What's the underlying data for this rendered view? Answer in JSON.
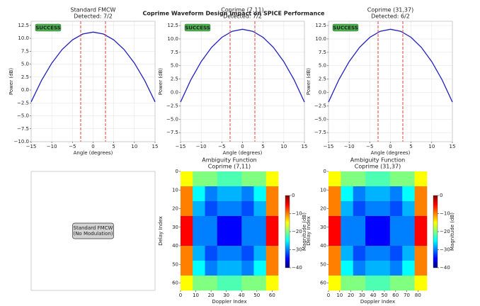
{
  "title": "Coprime Waveform Design Impact on SPICE Performance",
  "chart_data": [
    {
      "type": "line",
      "title": "Standard FMCW",
      "subtitle": "Detected: 7/2",
      "xlabel": "Angle (degrees)",
      "ylabel": "Power (dB)",
      "annotation": "SUCCESS",
      "x": [
        -15,
        -12.5,
        -10,
        -7.5,
        -5,
        -2.5,
        0,
        2.5,
        5,
        7.5,
        10,
        12.5,
        15
      ],
      "series": [
        {
          "color": "#1f1fbf",
          "values": [
            -2.3,
            1.83,
            5.2,
            7.83,
            9.7,
            10.83,
            11.2,
            10.83,
            9.7,
            7.83,
            5.2,
            1.83,
            -2.3
          ]
        }
      ],
      "markers": [
        -3,
        3
      ],
      "marker_color": "#e0403a",
      "xlim": [
        -15,
        15
      ],
      "ylim": [
        -10,
        13.3
      ],
      "xticks": [
        {
          "value": -15,
          "label": "−15"
        },
        {
          "value": -10,
          "label": "−10"
        },
        {
          "value": -5,
          "label": "−5"
        },
        0,
        5,
        10,
        15
      ],
      "yticks": [
        {
          "value": -10,
          "label": "−10.0"
        },
        {
          "value": -7.5,
          "label": "−7.5"
        },
        {
          "value": -5,
          "label": "−5.0"
        },
        {
          "value": -2.5,
          "label": "−2.5"
        },
        {
          "value": 0,
          "label": "0.0"
        },
        2.5,
        {
          "value": 5,
          "label": "5.0"
        },
        7.5,
        {
          "value": 10,
          "label": "10.0"
        },
        12.5
      ],
      "grid": true
    },
    {
      "type": "line",
      "title": "Coprime (7,11)",
      "subtitle": "Detected: 7/2",
      "xlabel": "Angle (degrees)",
      "ylabel": "Power (dB)",
      "annotation": "SUCCESS",
      "x": [
        -15,
        -12.5,
        -10,
        -7.5,
        -5,
        -2.5,
        0,
        2.5,
        5,
        7.5,
        10,
        12.5,
        15
      ],
      "series": [
        {
          "color": "#1f1fbf",
          "values": [
            -1.8,
            2.36,
            5.76,
            8.4,
            10.29,
            11.42,
            11.8,
            11.42,
            10.29,
            8.4,
            5.76,
            2.36,
            -1.8
          ]
        }
      ],
      "markers": [
        -3,
        3
      ],
      "marker_color": "#e0403a",
      "xlim": [
        -15,
        15
      ],
      "ylim": [
        -9.2,
        13.3
      ],
      "xticks": [
        {
          "value": -15,
          "label": "−15"
        },
        {
          "value": -10,
          "label": "−10"
        },
        {
          "value": -5,
          "label": "−5"
        },
        0,
        5,
        10,
        15
      ],
      "yticks": [
        {
          "value": -7.5,
          "label": "−7.5"
        },
        {
          "value": -5,
          "label": "−5.0"
        },
        {
          "value": -2.5,
          "label": "−2.5"
        },
        {
          "value": 0,
          "label": "0.0"
        },
        2.5,
        {
          "value": 5,
          "label": "5.0"
        },
        7.5,
        {
          "value": 10,
          "label": "10.0"
        },
        12.5
      ],
      "grid": true
    },
    {
      "type": "line",
      "title": "Coprime (31,37)",
      "subtitle": "Detected: 6/2",
      "xlabel": "Angle (degrees)",
      "ylabel": "Power (dB)",
      "annotation": "SUCCESS",
      "x": [
        -15,
        -12.5,
        -10,
        -7.5,
        -5,
        -2.5,
        0,
        2.5,
        5,
        7.5,
        10,
        12.5,
        15
      ],
      "series": [
        {
          "color": "#1f1fbf",
          "values": [
            -1.8,
            2.36,
            5.76,
            8.4,
            10.29,
            11.42,
            11.8,
            11.42,
            10.29,
            8.4,
            5.76,
            2.36,
            -1.8
          ]
        }
      ],
      "markers": [
        -3,
        3
      ],
      "marker_color": "#e0403a",
      "xlim": [
        -15,
        15
      ],
      "ylim": [
        -9.2,
        13.3
      ],
      "xticks": [
        {
          "value": -15,
          "label": "−15"
        },
        {
          "value": -10,
          "label": "−10"
        },
        {
          "value": -5,
          "label": "−5"
        },
        0,
        5,
        10,
        15
      ],
      "yticks": [
        {
          "value": -7.5,
          "label": "−7.5"
        },
        {
          "value": -5,
          "label": "−5.0"
        },
        {
          "value": -2.5,
          "label": "−2.5"
        },
        {
          "value": 0,
          "label": "0.0"
        },
        2.5,
        {
          "value": 5,
          "label": "5.0"
        },
        7.5,
        {
          "value": 10,
          "label": "10.0"
        },
        12.5
      ],
      "grid": true
    },
    {
      "type": "text",
      "lines": [
        "Standard FMCW",
        "(No Modulation)"
      ]
    },
    {
      "type": "heatmap",
      "title": "Ambiguity Function",
      "subtitle": "Coprime (7,11)",
      "xlabel": "Doppler Index",
      "ylabel": "Delay Index",
      "colorbar_label": "Magnitude (dB)",
      "z": [
        [
          -15,
          -20,
          -20,
          -22,
          -22,
          -20,
          -20,
          -15
        ],
        [
          -10,
          -25,
          -30,
          -28,
          -28,
          -30,
          -25,
          -10
        ],
        [
          -10,
          -28,
          -32,
          -30,
          -30,
          -32,
          -28,
          -10
        ],
        [
          -5,
          -30,
          -30,
          -35,
          -35,
          -30,
          -30,
          -5
        ],
        [
          -5,
          -30,
          -30,
          -35,
          -35,
          -30,
          -30,
          -5
        ],
        [
          -10,
          -28,
          -32,
          -30,
          -30,
          -32,
          -28,
          -10
        ],
        [
          -10,
          -25,
          -30,
          -28,
          -28,
          -30,
          -25,
          -10
        ],
        [
          -15,
          -20,
          -20,
          -22,
          -22,
          -20,
          -20,
          -15
        ]
      ],
      "xlim": [
        0,
        64
      ],
      "ylim": [
        64,
        0
      ],
      "xticks": [
        0,
        10,
        20,
        30,
        40,
        50,
        60
      ],
      "yticks": [
        0,
        10,
        20,
        30,
        40,
        50,
        60
      ],
      "zlim": [
        -40,
        0
      ],
      "zticks": [
        0,
        {
          "value": -10,
          "label": "−10"
        },
        {
          "value": -20,
          "label": "−20"
        },
        {
          "value": -30,
          "label": "−30"
        },
        {
          "value": -40,
          "label": "−40"
        }
      ]
    },
    {
      "type": "heatmap",
      "title": "Ambiguity Function",
      "subtitle": "Coprime (31,37)",
      "xlabel": "Doppler Index",
      "ylabel": "Delay Index",
      "colorbar_label": "Magnitude (dB)",
      "z": [
        [
          -15,
          -20,
          -20,
          -22,
          -22,
          -20,
          -20,
          -15
        ],
        [
          -10,
          -25,
          -30,
          -28,
          -28,
          -30,
          -25,
          -10
        ],
        [
          -10,
          -28,
          -32,
          -30,
          -30,
          -32,
          -28,
          -10
        ],
        [
          -5,
          -30,
          -30,
          -35,
          -35,
          -30,
          -30,
          -5
        ],
        [
          -5,
          -30,
          -30,
          -35,
          -35,
          -30,
          -30,
          -5
        ],
        [
          -10,
          -28,
          -32,
          -30,
          -30,
          -32,
          -28,
          -10
        ],
        [
          -10,
          -25,
          -30,
          -28,
          -28,
          -30,
          -25,
          -10
        ],
        [
          -15,
          -20,
          -20,
          -22,
          -22,
          -20,
          -20,
          -15
        ]
      ],
      "xlim": [
        0,
        88
      ],
      "ylim": [
        64,
        0
      ],
      "xticks": [
        0,
        10,
        20,
        30,
        40,
        50,
        60,
        70,
        80
      ],
      "yticks": [
        0,
        10,
        20,
        30,
        40,
        50,
        60
      ],
      "zlim": [
        -40,
        0
      ],
      "zticks": [
        0,
        {
          "value": -10,
          "label": "−10"
        },
        {
          "value": -20,
          "label": "−20"
        },
        {
          "value": -30,
          "label": "−30"
        },
        {
          "value": -40,
          "label": "−40"
        }
      ]
    }
  ]
}
